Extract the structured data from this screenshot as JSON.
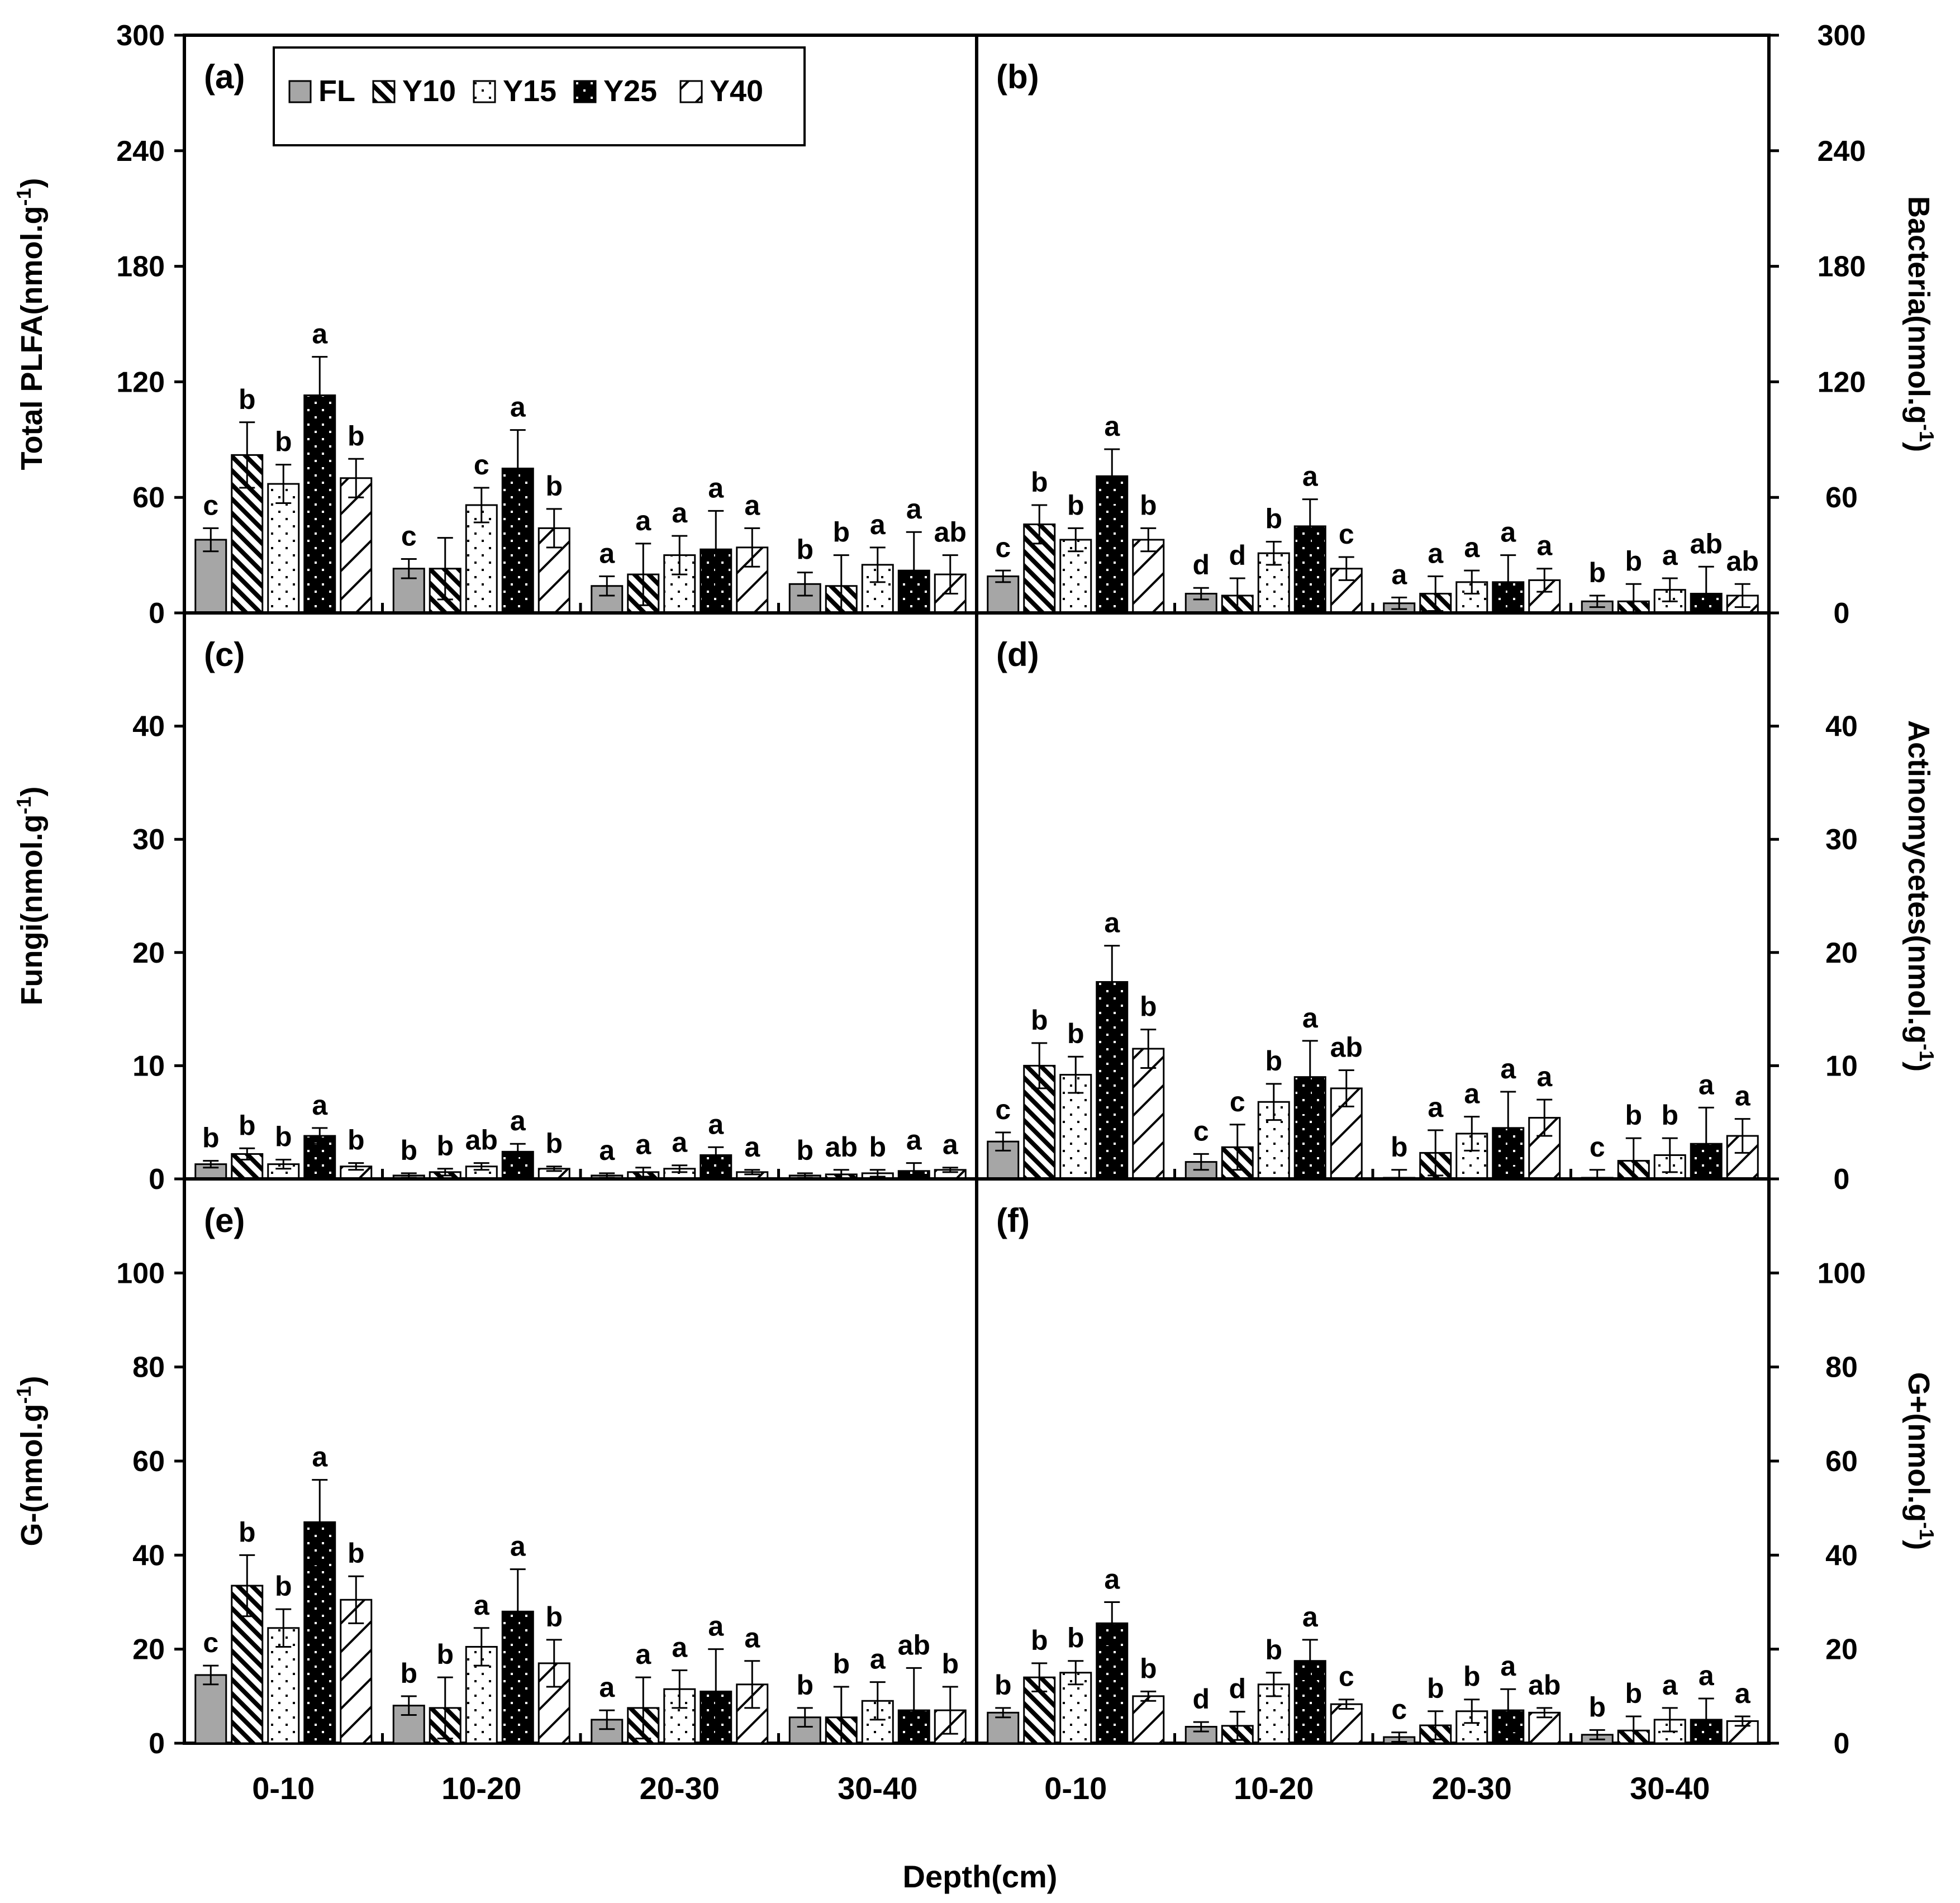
{
  "xlabel": "Depth(cm)",
  "legend": [
    {
      "name": "FL",
      "pattern": "gray"
    },
    {
      "name": "Y10",
      "pattern": "diag-dense"
    },
    {
      "name": "Y15",
      "pattern": "dots"
    },
    {
      "name": "Y25",
      "pattern": "black-dots"
    },
    {
      "name": "Y40",
      "pattern": "diag-sparse"
    }
  ],
  "colors": {
    "fl_fill": "#a6a6a6",
    "stroke": "#000000",
    "background": "#ffffff"
  },
  "chart_data": [
    {
      "type": "bar",
      "panel_label": "(a)",
      "ylabel": "Total PLFA(nmol.g",
      "ylabel_sup": "-1",
      "ylabel_close": ")",
      "ylim": [
        0,
        300
      ],
      "yticks": [
        "0",
        "60",
        "120",
        "180",
        "240",
        "300"
      ],
      "yaxis_side": "left",
      "categories": [
        "0-10",
        "10-20",
        "20-30",
        "30-40"
      ],
      "series": [
        {
          "name": "FL",
          "values": [
            38,
            23,
            14,
            15
          ],
          "errors": [
            6,
            5,
            5,
            6
          ],
          "letters": [
            "c",
            "c",
            "a",
            "b"
          ]
        },
        {
          "name": "Y10",
          "values": [
            82,
            23,
            20,
            14
          ],
          "errors": [
            17,
            16,
            16,
            16
          ],
          "letters": [
            "b",
            "",
            "a",
            "b"
          ]
        },
        {
          "name": "Y15",
          "values": [
            67,
            56,
            30,
            25
          ],
          "errors": [
            10,
            9,
            10,
            9
          ],
          "letters": [
            "b",
            "c",
            "a",
            "a"
          ]
        },
        {
          "name": "Y25",
          "values": [
            113,
            75,
            33,
            22
          ],
          "errors": [
            20,
            20,
            20,
            20
          ],
          "letters": [
            "a",
            "a",
            "a",
            "a"
          ]
        },
        {
          "name": "Y40",
          "values": [
            70,
            44,
            34,
            20
          ],
          "errors": [
            10,
            10,
            10,
            10
          ],
          "letters": [
            "b",
            "b",
            "a",
            "ab"
          ]
        }
      ]
    },
    {
      "type": "bar",
      "panel_label": "(b)",
      "ylabel": "Bacteria(nmol.g",
      "ylabel_sup": "-1",
      "ylabel_close": ")",
      "ylim": [
        0,
        300
      ],
      "yticks": [
        "0",
        "60",
        "120",
        "180",
        "240",
        "300"
      ],
      "yaxis_side": "right",
      "categories": [
        "0-10",
        "10-20",
        "20-30",
        "30-40"
      ],
      "series": [
        {
          "name": "FL",
          "values": [
            19,
            10,
            5,
            6
          ],
          "errors": [
            3,
            3,
            3,
            3
          ],
          "letters": [
            "c",
            "d",
            "a",
            "b"
          ]
        },
        {
          "name": "Y10",
          "values": [
            46,
            9,
            10,
            6
          ],
          "errors": [
            10,
            9,
            9,
            9
          ],
          "letters": [
            "b",
            "d",
            "a",
            "b"
          ]
        },
        {
          "name": "Y15",
          "values": [
            38,
            31,
            16,
            12
          ],
          "errors": [
            6,
            6,
            6,
            6
          ],
          "letters": [
            "b",
            "b",
            "a",
            "a"
          ]
        },
        {
          "name": "Y25",
          "values": [
            71,
            45,
            16,
            10
          ],
          "errors": [
            14,
            14,
            14,
            14
          ],
          "letters": [
            "a",
            "a",
            "a",
            "ab"
          ]
        },
        {
          "name": "Y40",
          "values": [
            38,
            23,
            17,
            9
          ],
          "errors": [
            6,
            6,
            6,
            6
          ],
          "letters": [
            "b",
            "c",
            "a",
            "ab"
          ]
        }
      ]
    },
    {
      "type": "bar",
      "panel_label": "(c)",
      "ylabel": "Fungi(nmol.g",
      "ylabel_sup": "-1",
      "ylabel_close": ")",
      "ylim": [
        0,
        50
      ],
      "yticks": [
        "0",
        "10",
        "20",
        "30",
        "40"
      ],
      "yaxis_side": "left",
      "categories": [
        "0-10",
        "10-20",
        "20-30",
        "30-40"
      ],
      "series": [
        {
          "name": "FL",
          "values": [
            1.3,
            0.3,
            0.3,
            0.3
          ],
          "errors": [
            0.3,
            0.2,
            0.2,
            0.2
          ],
          "letters": [
            "b",
            "b",
            "a",
            "b"
          ]
        },
        {
          "name": "Y10",
          "values": [
            2.2,
            0.6,
            0.6,
            0.4
          ],
          "errors": [
            0.5,
            0.3,
            0.4,
            0.4
          ],
          "letters": [
            "b",
            "b",
            "a",
            "ab"
          ]
        },
        {
          "name": "Y15",
          "values": [
            1.3,
            1.1,
            0.9,
            0.5
          ],
          "errors": [
            0.4,
            0.3,
            0.3,
            0.3
          ],
          "letters": [
            "b",
            "ab",
            "a",
            "b"
          ]
        },
        {
          "name": "Y25",
          "values": [
            3.8,
            2.4,
            2.1,
            0.7
          ],
          "errors": [
            0.7,
            0.7,
            0.7,
            0.7
          ],
          "letters": [
            "a",
            "a",
            "a",
            "a"
          ]
        },
        {
          "name": "Y40",
          "values": [
            1.1,
            0.9,
            0.6,
            0.8
          ],
          "errors": [
            0.3,
            0.2,
            0.2,
            0.2
          ],
          "letters": [
            "b",
            "b",
            "a",
            "a"
          ]
        }
      ]
    },
    {
      "type": "bar",
      "panel_label": "(d)",
      "ylabel": "Actinomycetes(nmol.g",
      "ylabel_sup": "-1",
      "ylabel_close": ")",
      "ylim": [
        0,
        50
      ],
      "yticks": [
        "0",
        "10",
        "20",
        "30",
        "40"
      ],
      "yaxis_side": "right",
      "categories": [
        "0-10",
        "10-20",
        "20-30",
        "30-40"
      ],
      "series": [
        {
          "name": "FL",
          "values": [
            3.3,
            1.5,
            0.1,
            0.1
          ],
          "errors": [
            0.8,
            0.7,
            0.7,
            0.7
          ],
          "letters": [
            "c",
            "c",
            "b",
            "c"
          ]
        },
        {
          "name": "Y10",
          "values": [
            10,
            2.8,
            2.3,
            1.6
          ],
          "errors": [
            2,
            2,
            2,
            2
          ],
          "letters": [
            "b",
            "c",
            "a",
            "b"
          ]
        },
        {
          "name": "Y15",
          "values": [
            9.2,
            6.8,
            4.0,
            2.1
          ],
          "errors": [
            1.6,
            1.6,
            1.5,
            1.5
          ],
          "letters": [
            "b",
            "b",
            "a",
            "b"
          ]
        },
        {
          "name": "Y25",
          "values": [
            17.4,
            9.0,
            4.5,
            3.1
          ],
          "errors": [
            3.2,
            3.2,
            3.2,
            3.2
          ],
          "letters": [
            "a",
            "a",
            "a",
            "a"
          ]
        },
        {
          "name": "Y40",
          "values": [
            11.5,
            8.0,
            5.4,
            3.8
          ],
          "errors": [
            1.7,
            1.6,
            1.6,
            1.5
          ],
          "letters": [
            "b",
            "ab",
            "a",
            "a"
          ]
        }
      ]
    },
    {
      "type": "bar",
      "panel_label": "(e)",
      "ylabel": "G-(nmol.g",
      "ylabel_sup": "-1",
      "ylabel_close": ")",
      "ylim": [
        0,
        120
      ],
      "yticks": [
        "0",
        "20",
        "40",
        "60",
        "80",
        "100"
      ],
      "yaxis_side": "left",
      "categories": [
        "0-10",
        "10-20",
        "20-30",
        "30-40"
      ],
      "series": [
        {
          "name": "FL",
          "values": [
            14.5,
            8,
            5,
            5.5
          ],
          "errors": [
            2,
            2,
            2,
            2
          ],
          "letters": [
            "c",
            "b",
            "a",
            "b"
          ]
        },
        {
          "name": "Y10",
          "values": [
            33.5,
            7.5,
            7.5,
            5.5
          ],
          "errors": [
            6.5,
            6.5,
            6.5,
            6.5
          ],
          "letters": [
            "b",
            "b",
            "a",
            "b"
          ]
        },
        {
          "name": "Y15",
          "values": [
            24.5,
            20.5,
            11.5,
            9
          ],
          "errors": [
            4,
            4,
            4,
            4
          ],
          "letters": [
            "b",
            "a",
            "a",
            "a"
          ]
        },
        {
          "name": "Y25",
          "values": [
            47,
            28,
            11,
            7
          ],
          "errors": [
            9,
            9,
            9,
            9
          ],
          "letters": [
            "a",
            "a",
            "a",
            "ab"
          ]
        },
        {
          "name": "Y40",
          "values": [
            30.5,
            17,
            12.5,
            7
          ],
          "errors": [
            5,
            5,
            5,
            5
          ],
          "letters": [
            "b",
            "b",
            "a",
            "b"
          ]
        }
      ]
    },
    {
      "type": "bar",
      "panel_label": "(f)",
      "ylabel": "G+(nmol.g",
      "ylabel_sup": "-1",
      "ylabel_close": ")",
      "ylim": [
        0,
        120
      ],
      "yticks": [
        "0",
        "20",
        "40",
        "60",
        "80",
        "100"
      ],
      "yaxis_side": "right",
      "categories": [
        "0-10",
        "10-20",
        "20-30",
        "30-40"
      ],
      "series": [
        {
          "name": "FL",
          "values": [
            6.5,
            3.5,
            1.3,
            1.8
          ],
          "errors": [
            1,
            1,
            1,
            1
          ],
          "letters": [
            "b",
            "d",
            "c",
            "b"
          ]
        },
        {
          "name": "Y10",
          "values": [
            14,
            3.7,
            3.8,
            2.7
          ],
          "errors": [
            3,
            3,
            3,
            3
          ],
          "letters": [
            "b",
            "d",
            "b",
            "b"
          ]
        },
        {
          "name": "Y15",
          "values": [
            15,
            12.5,
            6.8,
            5
          ],
          "errors": [
            2.5,
            2.5,
            2.5,
            2.5
          ],
          "letters": [
            "b",
            "b",
            "b",
            "a"
          ]
        },
        {
          "name": "Y25",
          "values": [
            25.5,
            17.5,
            7,
            5
          ],
          "errors": [
            4.5,
            4.5,
            4.5,
            4.5
          ],
          "letters": [
            "a",
            "a",
            "a",
            "a"
          ]
        },
        {
          "name": "Y40",
          "values": [
            10,
            8.3,
            6.5,
            4.7
          ],
          "errors": [
            1,
            1,
            1,
            1
          ],
          "letters": [
            "b",
            "c",
            "ab",
            "a"
          ]
        }
      ]
    }
  ]
}
